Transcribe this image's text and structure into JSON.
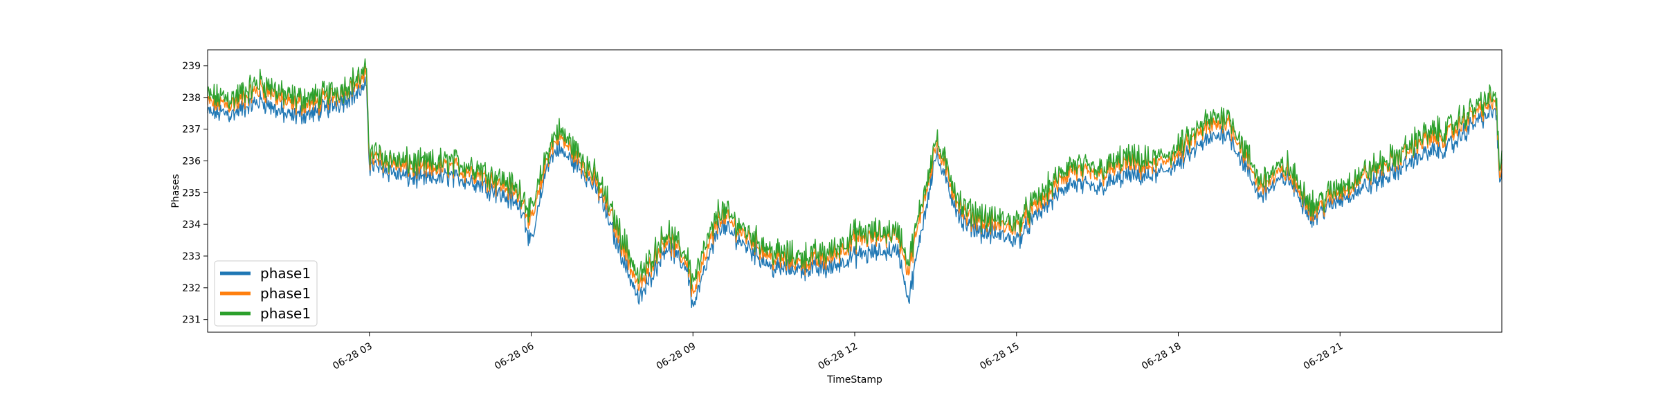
{
  "chart_data": {
    "type": "line",
    "title": "",
    "xlabel": "TimeStamp",
    "ylabel": "Phases",
    "x_start": "06-28 00:00",
    "x_end": "06-28 23:59",
    "x_ticks": [
      "06-28 03",
      "06-28 06",
      "06-28 09",
      "06-28 12",
      "06-28 15",
      "06-28 18",
      "06-28 21"
    ],
    "y_ticks": [
      "231",
      "232",
      "233",
      "234",
      "235",
      "236",
      "237",
      "238",
      "239"
    ],
    "ylim": [
      230.6,
      239.5
    ],
    "grid": false,
    "legend": {
      "position": "lower-left",
      "labels": [
        "phase1",
        "phase1",
        "phase1"
      ]
    },
    "x_hours": [
      0,
      0.5,
      1,
      1.5,
      2,
      2.5,
      2.95,
      3.0,
      3.5,
      4,
      4.5,
      5,
      5.5,
      5.85,
      5.9,
      6.0,
      6.3,
      6.5,
      7,
      7.3,
      7.5,
      8,
      8.5,
      8.9,
      9.0,
      9.5,
      10,
      10.5,
      11,
      11.5,
      12,
      12.8,
      12.85,
      13.0,
      13.5,
      14,
      14.5,
      15,
      15.5,
      16,
      16.5,
      17,
      17.5,
      18,
      18.5,
      18.9,
      18.95,
      19.5,
      20,
      20.5,
      21,
      21.5,
      22,
      22.5,
      23,
      23.5,
      23.9,
      23.95,
      24
    ],
    "series": [
      {
        "name": "phase1",
        "color": "#1f77b4",
        "values": [
          237.5,
          237.5,
          237.9,
          237.4,
          237.5,
          237.9,
          238.3,
          235.9,
          235.6,
          235.4,
          235.5,
          235.3,
          234.9,
          234.5,
          234.0,
          233.3,
          235.9,
          236.4,
          235.6,
          234.8,
          233.8,
          231.6,
          233.3,
          232.6,
          231.4,
          234.0,
          233.3,
          232.6,
          232.6,
          232.6,
          233.0,
          233.2,
          232.8,
          231.6,
          236.2,
          234.0,
          233.7,
          233.5,
          234.5,
          235.3,
          235.1,
          235.5,
          235.5,
          235.9,
          236.6,
          236.9,
          236.8,
          234.9,
          235.5,
          234.2,
          234.8,
          235.2,
          235.6,
          236.2,
          236.4,
          237.2,
          237.6,
          235.4,
          235.5
        ]
      },
      {
        "name": "phase1",
        "color": "#ff7f0e",
        "values": [
          237.8,
          237.8,
          238.3,
          237.8,
          237.8,
          238.2,
          238.6,
          236.1,
          235.9,
          235.7,
          235.8,
          235.6,
          235.2,
          234.8,
          234.5,
          234.0,
          236.1,
          236.8,
          235.8,
          235.0,
          234.2,
          232.0,
          233.6,
          232.8,
          231.8,
          234.3,
          233.6,
          232.9,
          232.8,
          232.9,
          233.5,
          233.7,
          233.4,
          232.5,
          236.5,
          234.3,
          234.0,
          233.9,
          234.8,
          235.7,
          235.5,
          235.9,
          235.8,
          236.2,
          237.0,
          237.3,
          237.2,
          235.2,
          235.7,
          234.4,
          235.0,
          235.6,
          236.0,
          236.6,
          236.8,
          237.5,
          237.9,
          235.6,
          235.8
        ]
      },
      {
        "name": "phase1",
        "color": "#2ca02c",
        "values": [
          238.0,
          238.0,
          238.5,
          238.0,
          238.0,
          238.3,
          238.8,
          236.3,
          236.0,
          235.9,
          236.0,
          235.8,
          235.4,
          235.0,
          234.7,
          234.3,
          236.3,
          237.0,
          236.0,
          235.2,
          234.4,
          232.3,
          233.8,
          233.0,
          232.2,
          234.5,
          233.8,
          233.1,
          233.0,
          233.1,
          233.7,
          233.8,
          233.6,
          232.8,
          236.7,
          234.5,
          234.2,
          234.1,
          235.0,
          235.9,
          235.7,
          236.1,
          236.0,
          236.4,
          237.2,
          237.5,
          237.4,
          235.4,
          235.9,
          234.6,
          235.2,
          235.7,
          236.1,
          236.8,
          237.0,
          237.7,
          238.1,
          235.8,
          236.0
        ]
      }
    ]
  }
}
